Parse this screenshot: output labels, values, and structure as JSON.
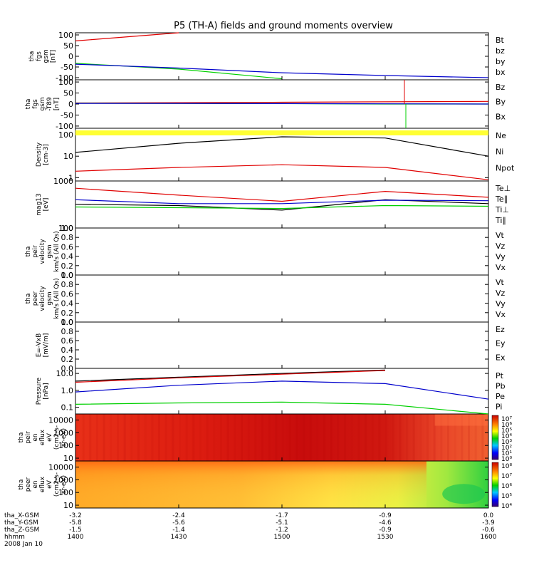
{
  "title": "P5 (TH-A) fields and ground moments overview",
  "colors": {
    "black": "#000000",
    "red": "#e00000",
    "green": "#00d000",
    "blue": "#0000cc",
    "yellow": "#ffff33"
  },
  "panels": [
    {
      "id": "fgs",
      "ylabel": [
        "tha",
        "fgs",
        "gsm",
        "[nT]"
      ],
      "ticks": [
        "100",
        "50",
        "0",
        "-50",
        "-100"
      ],
      "tick_values": [
        100,
        50,
        0,
        -50,
        -100
      ],
      "ylim": [
        -110,
        110
      ],
      "legend": [
        {
          "label": "Bt",
          "color": "black"
        },
        {
          "label": "bz",
          "color": "red"
        },
        {
          "label": "by",
          "color": "green"
        },
        {
          "label": "bx",
          "color": "blue"
        }
      ]
    },
    {
      "id": "fgs_t89",
      "ylabel": [
        "tha",
        "fgs",
        "gsm",
        "-T89",
        "[nT]"
      ],
      "ticks": [
        "100",
        "50",
        "0",
        "-50",
        "-100"
      ],
      "tick_values": [
        100,
        50,
        0,
        -50,
        -100
      ],
      "ylim": [
        -110,
        110
      ],
      "legend": [
        {
          "label": "Bz",
          "color": "red"
        },
        {
          "label": "By",
          "color": "green"
        },
        {
          "label": "Bx",
          "color": "blue"
        }
      ]
    },
    {
      "id": "density",
      "ylabel": [
        "Density",
        "[cm-3]"
      ],
      "ticks": [
        "100",
        "10",
        "1"
      ],
      "tick_values": [
        100,
        10,
        1
      ],
      "log": true,
      "ylim": [
        0.7,
        200
      ],
      "legend": [
        {
          "label": "Ne",
          "color": "red"
        },
        {
          "label": "Ni",
          "color": "black"
        },
        {
          "label": "Npot",
          "color": "blue"
        }
      ]
    },
    {
      "id": "temp",
      "ylabel": [
        "mag13",
        "[eV]"
      ],
      "ticks": [
        "1000",
        "100"
      ],
      "tick_values": [
        1000,
        100
      ],
      "log": true,
      "ylim": [
        100,
        1000
      ],
      "legend": [
        {
          "label": "Te⊥",
          "color": "red"
        },
        {
          "label": "Te∥",
          "color": "black"
        },
        {
          "label": "Ti⊥",
          "color": "blue"
        },
        {
          "label": "Ti∥",
          "color": "green"
        }
      ]
    },
    {
      "id": "peir_vel",
      "ylabel": [
        "tha",
        "peir",
        "velocity",
        "gsm",
        "km/s (All Qs)"
      ],
      "ticks": [
        "1.0",
        "0.8",
        "0.6",
        "0.4",
        "0.2",
        "0.0"
      ],
      "tick_values": [
        1.0,
        0.8,
        0.6,
        0.4,
        0.2,
        0.0
      ],
      "ylim": [
        0,
        1
      ],
      "legend": [
        {
          "label": "Vt",
          "color": "black"
        },
        {
          "label": "Vz",
          "color": "red"
        },
        {
          "label": "Vy",
          "color": "green"
        },
        {
          "label": "Vx",
          "color": "blue"
        }
      ]
    },
    {
      "id": "peer_vel",
      "ylabel": [
        "tha",
        "peer",
        "velocity",
        "gsm",
        "km/s (All Qs)"
      ],
      "ticks": [
        "1.0",
        "0.8",
        "0.6",
        "0.4",
        "0.2",
        "0.0"
      ],
      "tick_values": [
        1.0,
        0.8,
        0.6,
        0.4,
        0.2,
        0.0
      ],
      "ylim": [
        0,
        1
      ],
      "legend": [
        {
          "label": "Vt",
          "color": "black"
        },
        {
          "label": "Vz",
          "color": "red"
        },
        {
          "label": "Vy",
          "color": "green"
        },
        {
          "label": "Vx",
          "color": "blue"
        }
      ]
    },
    {
      "id": "efield",
      "ylabel": [
        "E=-VxB",
        "[mV/m]"
      ],
      "ticks": [
        "1.0",
        "0.8",
        "0.6",
        "0.4",
        "0.2",
        "0.0"
      ],
      "tick_values": [
        1.0,
        0.8,
        0.6,
        0.4,
        0.2,
        0.0
      ],
      "ylim": [
        0,
        1
      ],
      "legend": [
        {
          "label": "Ez",
          "color": "red"
        },
        {
          "label": "Ey",
          "color": "green"
        },
        {
          "label": "Ex",
          "color": "blue"
        }
      ]
    },
    {
      "id": "pressure",
      "ylabel": [
        "Pressure",
        "[nPa]"
      ],
      "ticks": [
        "10.0",
        "1.0",
        "0.1"
      ],
      "tick_values": [
        10,
        1,
        0.1
      ],
      "log": true,
      "ylim": [
        0.04,
        20
      ],
      "legend": [
        {
          "label": "Pt",
          "color": "black"
        },
        {
          "label": "Pb",
          "color": "red"
        },
        {
          "label": "Pe",
          "color": "green"
        },
        {
          "label": "Pi",
          "color": "blue"
        }
      ]
    },
    {
      "id": "peir_spec",
      "ylabel": [
        "tha",
        "peir",
        "en",
        "eflux",
        "eV",
        "(cm2-s-",
        "sr-eV)"
      ],
      "ticks": [
        "10000",
        "1000",
        "100",
        "10"
      ],
      "tick_values": [
        10000,
        1000,
        100,
        10
      ],
      "log": true,
      "ylim": [
        6,
        30000
      ],
      "colorbar": [
        "10⁷",
        "10⁶",
        "10⁵",
        "10⁴",
        "10³",
        "10²",
        "10¹",
        "10⁰"
      ]
    },
    {
      "id": "peer_spec",
      "ylabel": [
        "tha",
        "peer",
        "en",
        "eflux",
        "eV",
        "(cm2-s-",
        "sr-eV)"
      ],
      "ticks": [
        "10000",
        "1000",
        "100",
        "10"
      ],
      "tick_values": [
        10000,
        1000,
        100,
        10
      ],
      "log": true,
      "ylim": [
        6,
        30000
      ],
      "colorbar": [
        "10⁸",
        "10⁷",
        "10⁶",
        "10⁵",
        "10⁴"
      ]
    }
  ],
  "xaxis": {
    "rows": [
      {
        "label": "tha_X-GSM",
        "values": [
          "-3.2",
          "-2.4",
          "-1.7",
          "-0.9",
          "0.0"
        ]
      },
      {
        "label": "tha_Y-GSM",
        "values": [
          "-5.8",
          "-5.6",
          "-5.1",
          "-4.6",
          "-3.9"
        ]
      },
      {
        "label": "tha_Z-GSM",
        "values": [
          "-1.5",
          "-1.4",
          "-1.2",
          "-0.9",
          "-0.6"
        ]
      },
      {
        "label": "hhmm",
        "values": [
          "1400",
          "1430",
          "1500",
          "1530",
          "1600"
        ]
      }
    ],
    "date": "2008 Jan 10"
  },
  "chart_data": [
    {
      "type": "line",
      "panel": "fgs",
      "x": [
        "1400",
        "1430",
        "1500",
        "1530",
        "1600"
      ],
      "series": [
        {
          "name": "Bt",
          "values": [
            102,
            null,
            null,
            null,
            null
          ]
        },
        {
          "name": "bz",
          "values": [
            72,
            112,
            null,
            null,
            null
          ]
        },
        {
          "name": "by",
          "values": [
            -33,
            -60,
            -105,
            null,
            null
          ]
        },
        {
          "name": "bx",
          "values": [
            -37,
            -55,
            -77,
            -90,
            -100
          ]
        }
      ]
    },
    {
      "type": "line",
      "panel": "fgs_t89",
      "x": [
        "1400",
        "1430",
        "1500",
        "1530",
        "1600"
      ],
      "series": [
        {
          "name": "Bz",
          "values": [
            5,
            6,
            8,
            10,
            12
          ]
        },
        {
          "name": "By",
          "values": [
            4,
            3,
            2,
            0,
            0
          ]
        },
        {
          "name": "Bx",
          "values": [
            3,
            3,
            2,
            1,
            0
          ]
        }
      ]
    },
    {
      "type": "line",
      "panel": "density",
      "x": [
        "1400",
        "1430",
        "1500",
        "1530",
        "1600"
      ],
      "series": [
        {
          "name": "Ni",
          "values": [
            15,
            40,
            80,
            70,
            10
          ]
        },
        {
          "name": "Ne",
          "values": [
            2,
            3,
            4,
            3,
            0.8
          ]
        }
      ]
    },
    {
      "type": "line",
      "panel": "temp",
      "x": [
        "1400",
        "1430",
        "1500",
        "1530",
        "1600"
      ],
      "series": [
        {
          "name": "Te⊥",
          "values": [
            700,
            500,
            370,
            600,
            450
          ]
        },
        {
          "name": "Te∥",
          "values": [
            320,
            300,
            240,
            400,
            330
          ]
        },
        {
          "name": "Ti⊥",
          "values": [
            400,
            330,
            330,
            390,
            380
          ]
        },
        {
          "name": "Ti∥",
          "values": [
            280,
            270,
            260,
            300,
            290
          ]
        }
      ]
    },
    {
      "type": "line",
      "panel": "pressure",
      "x": [
        "1400",
        "1430",
        "1500",
        "1530",
        "1600"
      ],
      "series": [
        {
          "name": "Pt",
          "values": [
            3.5,
            6,
            10,
            16,
            null
          ]
        },
        {
          "name": "Pb",
          "values": [
            3,
            5.5,
            9,
            15,
            null
          ]
        },
        {
          "name": "Pi",
          "values": [
            0.8,
            2,
            3.5,
            2.5,
            0.3
          ]
        },
        {
          "name": "Pe",
          "values": [
            0.15,
            0.18,
            0.2,
            0.15,
            0.04
          ]
        }
      ]
    },
    {
      "type": "heatmap",
      "panel": "peir_spec",
      "x": [
        "1400",
        "1430",
        "1500",
        "1530",
        "1600"
      ],
      "ylim": [
        6,
        30000
      ]
    },
    {
      "type": "heatmap",
      "panel": "peer_spec",
      "x": [
        "1400",
        "1430",
        "1500",
        "1530",
        "1600"
      ],
      "ylim": [
        6,
        30000
      ]
    }
  ]
}
